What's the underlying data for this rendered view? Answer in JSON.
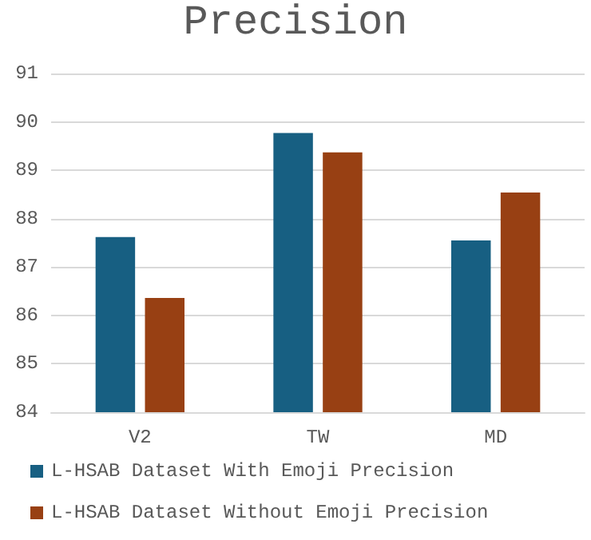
{
  "chart_data": {
    "type": "bar",
    "title": "Precision",
    "categories": [
      "V2",
      "TW",
      "MD"
    ],
    "series": [
      {
        "name": "L-HSAB Dataset With Emoji Precision",
        "color": "#175f82",
        "values": [
          87.62,
          89.77,
          87.55
        ]
      },
      {
        "name": "L-HSAB Dataset Without Emoji Precision",
        "color": "#984013",
        "values": [
          86.36,
          89.37,
          88.54
        ]
      }
    ],
    "ylim": [
      84,
      91
    ],
    "yticks": [
      84,
      85,
      86,
      87,
      88,
      89,
      90,
      91
    ],
    "grid": "y",
    "legend": "bottom"
  }
}
